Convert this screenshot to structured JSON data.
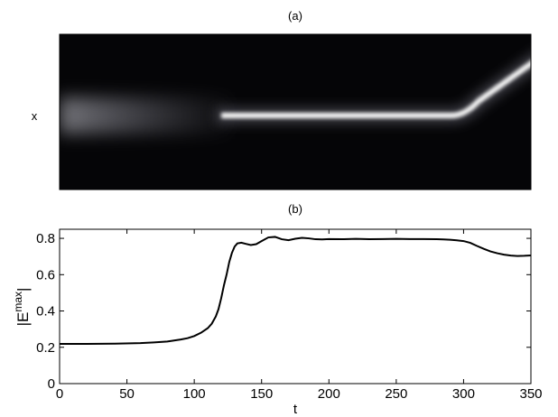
{
  "chart_data": [
    {
      "type": "heatmap",
      "title": "(a)",
      "ylabel": "x",
      "colormap": "grayscale (black background, white beam)",
      "description_points": {
        "beam_t": [
          0,
          45,
          115,
          125,
          290,
          305,
          350
        ],
        "beam_x_offset": [
          0,
          0,
          0,
          0,
          0,
          0.18,
          0.55
        ]
      }
    },
    {
      "type": "line",
      "title": "(b)",
      "xlabel": "t",
      "ylabel": "|E",
      "ylabel_sup": "max",
      "ylabel_end": "|",
      "xlim": [
        0,
        350
      ],
      "ylim": [
        0,
        0.85
      ],
      "xticks": [
        "0",
        "50",
        "100",
        "150",
        "200",
        "250",
        "300",
        "350"
      ],
      "yticks": [
        "0",
        "0.2",
        "0.4",
        "0.6",
        "0.8"
      ],
      "x": [
        0,
        20,
        40,
        60,
        70,
        80,
        90,
        95,
        100,
        105,
        110,
        113,
        116,
        118,
        120,
        122,
        124,
        126,
        128,
        130,
        132,
        135,
        138,
        142,
        146,
        150,
        155,
        160,
        165,
        170,
        175,
        180,
        185,
        190,
        195,
        200,
        210,
        220,
        230,
        240,
        250,
        260,
        270,
        280,
        285,
        290,
        295,
        300,
        305,
        310,
        315,
        320,
        325,
        330,
        335,
        340,
        345,
        350
      ],
      "y": [
        0.219,
        0.219,
        0.22,
        0.223,
        0.227,
        0.232,
        0.243,
        0.25,
        0.262,
        0.28,
        0.305,
        0.33,
        0.37,
        0.41,
        0.47,
        0.54,
        0.6,
        0.67,
        0.72,
        0.755,
        0.772,
        0.776,
        0.77,
        0.763,
        0.768,
        0.785,
        0.805,
        0.808,
        0.795,
        0.79,
        0.798,
        0.803,
        0.8,
        0.795,
        0.794,
        0.796,
        0.795,
        0.797,
        0.795,
        0.796,
        0.797,
        0.796,
        0.796,
        0.795,
        0.794,
        0.792,
        0.789,
        0.785,
        0.775,
        0.758,
        0.742,
        0.728,
        0.718,
        0.71,
        0.705,
        0.703,
        0.704,
        0.706
      ],
      "grid": false,
      "legend": "none"
    }
  ]
}
